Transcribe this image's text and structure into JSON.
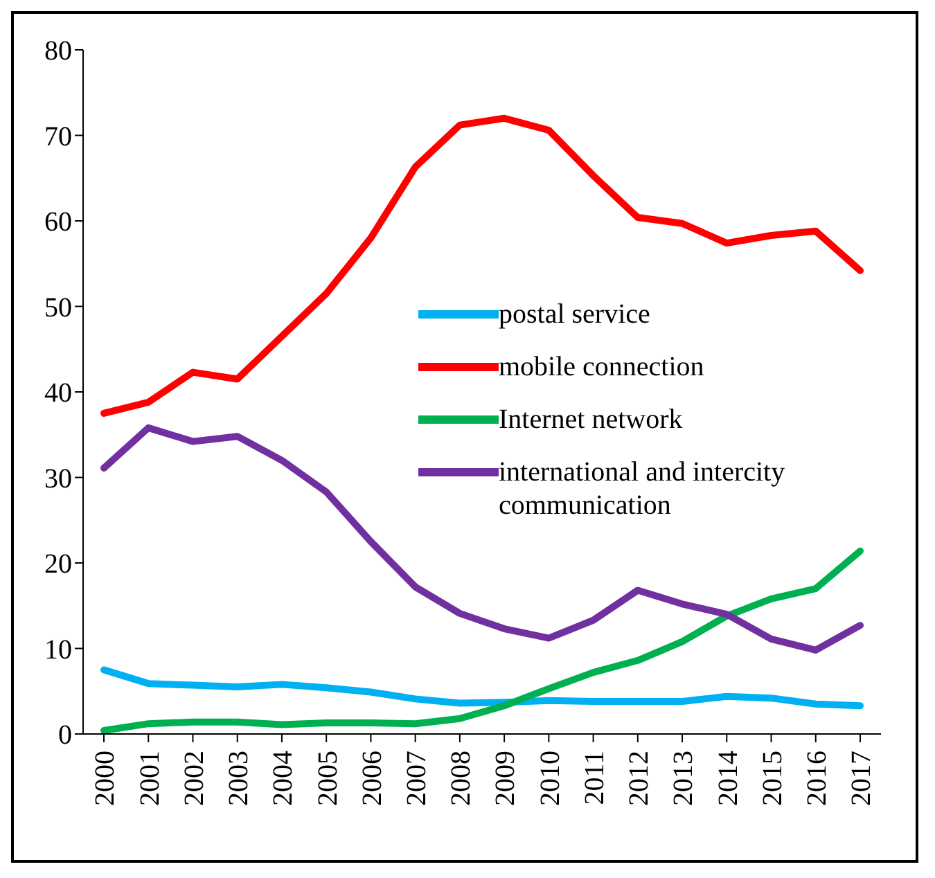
{
  "chart_data": {
    "type": "line",
    "categories": [
      "2000",
      "2001",
      "2002",
      "2003",
      "2004",
      "2005",
      "2006",
      "2007",
      "2008",
      "2009",
      "2010",
      "2011",
      "2012",
      "2013",
      "2014",
      "2015",
      "2016",
      "2017"
    ],
    "series": [
      {
        "name": "postal service",
        "color": "#00b0f0",
        "values": [
          7.5,
          5.9,
          5.7,
          5.5,
          5.8,
          5.4,
          4.9,
          4.1,
          3.6,
          3.7,
          3.9,
          3.8,
          3.8,
          3.8,
          4.4,
          4.2,
          3.5,
          3.3
        ]
      },
      {
        "name": "mobile connection",
        "color": "#ff0000",
        "values": [
          37.5,
          38.8,
          42.3,
          41.5,
          46.5,
          51.5,
          58,
          66.3,
          71.2,
          72,
          70.6,
          65.3,
          60.4,
          59.7,
          57.4,
          58.3,
          58.8,
          54.2
        ]
      },
      {
        "name": "Internet network",
        "color": "#00b050",
        "values": [
          0.4,
          1.2,
          1.4,
          1.4,
          1.1,
          1.3,
          1.3,
          1.2,
          1.8,
          3.3,
          5.3,
          7.2,
          8.6,
          10.8,
          13.8,
          15.8,
          17,
          21.4
        ]
      },
      {
        "name": "international and intercity communication",
        "color": "#7030a0",
        "values": [
          31.1,
          35.8,
          34.2,
          34.8,
          32,
          28.3,
          22.5,
          17.2,
          14.1,
          12.3,
          11.2,
          13.3,
          16.8,
          15.2,
          14,
          11.1,
          9.8,
          12.7
        ]
      }
    ],
    "ylim": [
      0,
      80
    ],
    "yticks": [
      0,
      10,
      20,
      30,
      40,
      50,
      60,
      70,
      80
    ],
    "grid": false,
    "legend": "right",
    "marker": "none",
    "line_style": "solid"
  }
}
